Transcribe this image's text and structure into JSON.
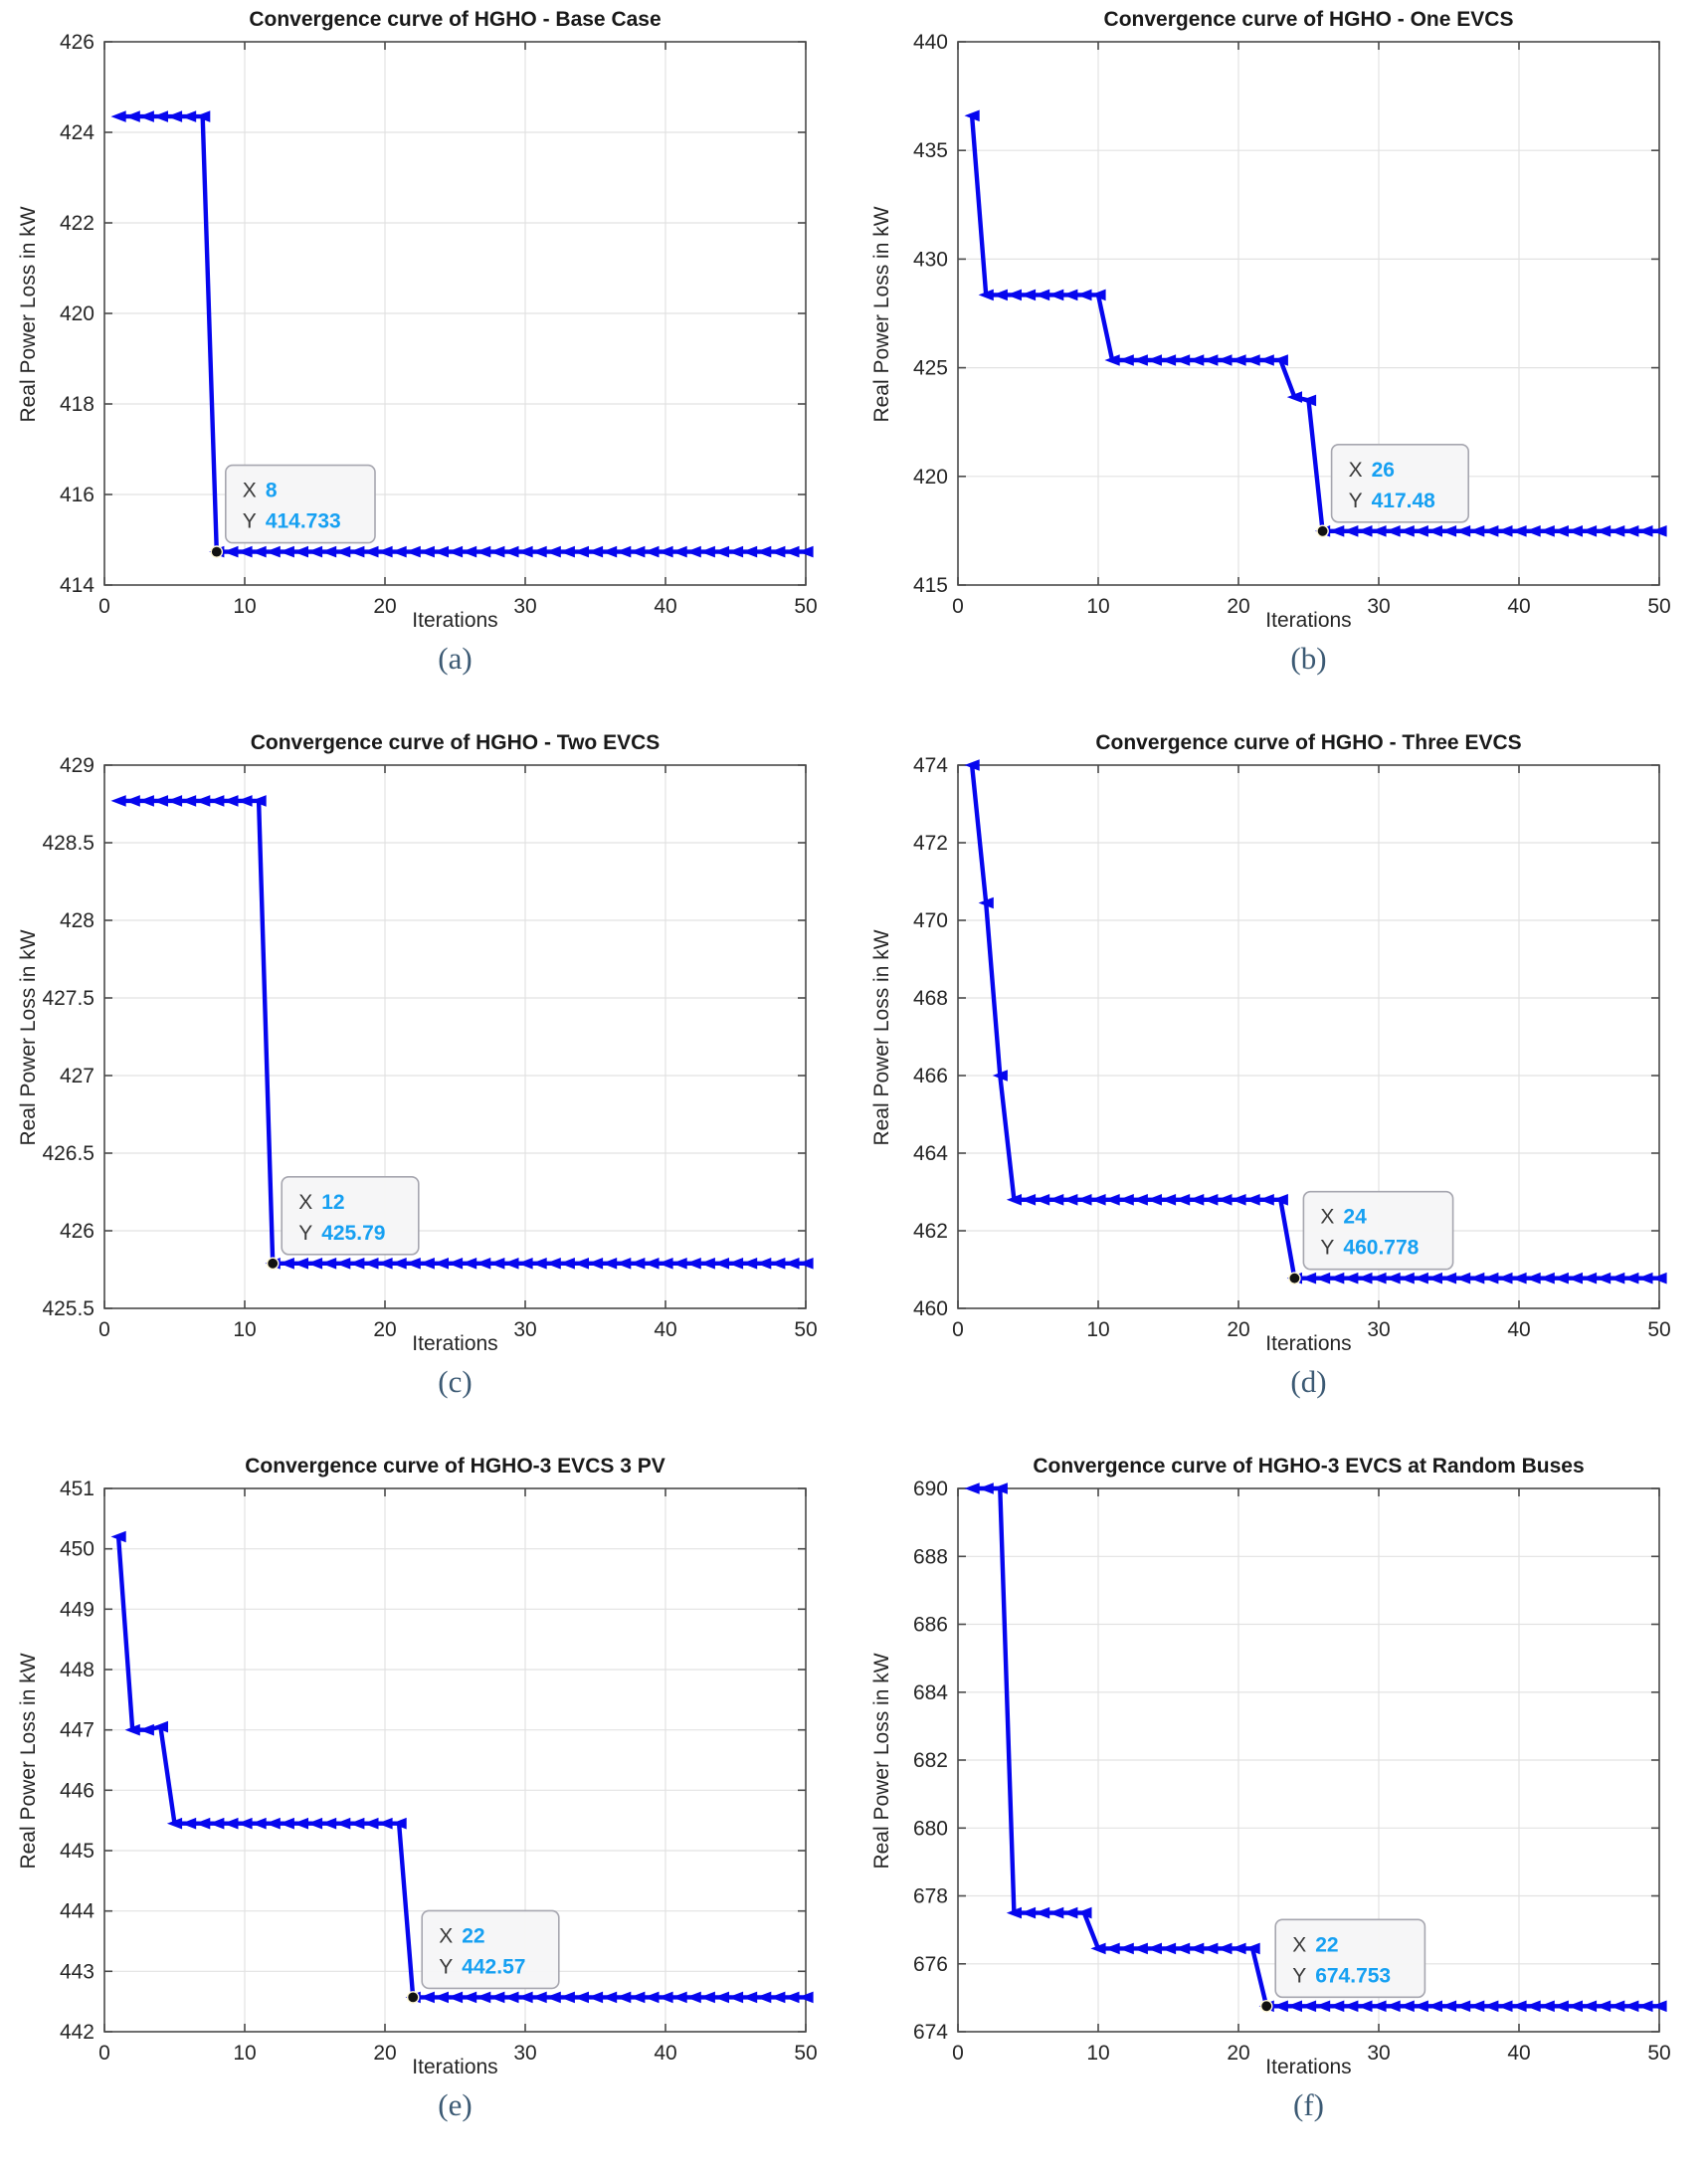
{
  "figure": {
    "background": "#ffffff",
    "styles": {
      "line_color": "#0606ee",
      "grid_color": "#e2e2e2",
      "axes_color": "#4a4a4a",
      "tick_label_color": "#262626",
      "title_color": "#191919",
      "caption_color": "#3c5a74",
      "datatip_bg": "#f5f5f7",
      "datatip_border": "#a6a6af",
      "datatip_label_color": "#3a3a3a",
      "datatip_value_color": "#16a0f2",
      "datatip_point_color": "#111111",
      "marker": "left-triangle"
    }
  },
  "chart_data": [
    {
      "type": "line",
      "title": "Convergence curve of HGHO - Base Case",
      "xlabel": "Iterations",
      "ylabel": "Real Power Loss in kW",
      "caption": "(a)",
      "xlim": [
        0,
        50
      ],
      "ylim": [
        414,
        426
      ],
      "xticks": [
        0,
        10,
        20,
        30,
        40,
        50
      ],
      "yticks": [
        414,
        416,
        418,
        420,
        422,
        424,
        426
      ],
      "grid": true,
      "legend": "none",
      "segments": [
        [
          1,
          7,
          424.35
        ],
        [
          8,
          50,
          414.733
        ]
      ],
      "datatip": {
        "x": 8,
        "y": 414.733,
        "x_label": "X",
        "y_label": "Y",
        "x_value": "8",
        "y_value": "414.733"
      }
    },
    {
      "type": "line",
      "title": "Convergence curve of HGHO - One EVCS",
      "xlabel": "Iterations",
      "ylabel": "Real Power Loss in kW",
      "caption": "(b)",
      "xlim": [
        0,
        50
      ],
      "ylim": [
        415,
        440
      ],
      "xticks": [
        0,
        10,
        20,
        30,
        40,
        50
      ],
      "yticks": [
        415,
        420,
        425,
        430,
        435,
        440
      ],
      "grid": true,
      "legend": "none",
      "segments": [
        [
          1,
          1,
          436.6
        ],
        [
          2,
          10,
          428.35
        ],
        [
          11,
          23,
          425.35
        ],
        [
          24,
          24,
          423.65
        ],
        [
          25,
          25,
          423.5
        ],
        [
          26,
          50,
          417.48
        ]
      ],
      "datatip": {
        "x": 26,
        "y": 417.48,
        "x_label": "X",
        "y_label": "Y",
        "x_value": "26",
        "y_value": "417.48"
      }
    },
    {
      "type": "line",
      "title": "Convergence curve of HGHO - Two EVCS",
      "xlabel": "Iterations",
      "ylabel": "Real Power Loss in kW",
      "caption": "(c)",
      "xlim": [
        0,
        50
      ],
      "ylim": [
        425.5,
        429
      ],
      "xticks": [
        0,
        10,
        20,
        30,
        40,
        50
      ],
      "yticks": [
        425.5,
        426,
        426.5,
        427,
        427.5,
        428,
        428.5,
        429
      ],
      "grid": true,
      "legend": "none",
      "segments": [
        [
          1,
          11,
          428.77
        ],
        [
          12,
          50,
          425.79
        ]
      ],
      "datatip": {
        "x": 12,
        "y": 425.79,
        "x_label": "X",
        "y_label": "Y",
        "x_value": "12",
        "y_value": "425.79"
      }
    },
    {
      "type": "line",
      "title": "Convergence curve of HGHO - Three EVCS",
      "xlabel": "Iterations",
      "ylabel": "Real Power Loss in kW",
      "caption": "(d)",
      "xlim": [
        0,
        50
      ],
      "ylim": [
        460,
        474
      ],
      "xticks": [
        0,
        10,
        20,
        30,
        40,
        50
      ],
      "yticks": [
        460,
        462,
        464,
        466,
        468,
        470,
        472,
        474
      ],
      "grid": true,
      "legend": "none",
      "segments": [
        [
          1,
          1,
          474.0
        ],
        [
          2,
          2,
          470.45
        ],
        [
          3,
          3,
          466.0
        ],
        [
          4,
          23,
          462.8
        ],
        [
          24,
          50,
          460.778
        ]
      ],
      "datatip": {
        "x": 24,
        "y": 460.778,
        "x_label": "X",
        "y_label": "Y",
        "x_value": "24",
        "y_value": "460.778"
      }
    },
    {
      "type": "line",
      "title": "Convergence curve of HGHO-3 EVCS 3 PV",
      "xlabel": "Iterations",
      "ylabel": "Real Power Loss in kW",
      "caption": "(e)",
      "xlim": [
        0,
        50
      ],
      "ylim": [
        442,
        451
      ],
      "xticks": [
        0,
        10,
        20,
        30,
        40,
        50
      ],
      "yticks": [
        442,
        443,
        444,
        445,
        446,
        447,
        448,
        449,
        450,
        451
      ],
      "grid": true,
      "legend": "none",
      "segments": [
        [
          1,
          1,
          450.2
        ],
        [
          2,
          3,
          447.0
        ],
        [
          4,
          4,
          447.05
        ],
        [
          5,
          21,
          445.45
        ],
        [
          22,
          50,
          442.57
        ]
      ],
      "datatip": {
        "x": 22,
        "y": 442.57,
        "x_label": "X",
        "y_label": "Y",
        "x_value": "22",
        "y_value": "442.57"
      }
    },
    {
      "type": "line",
      "title": "Convergence curve of HGHO-3 EVCS at Random Buses",
      "xlabel": "Iterations",
      "ylabel": "Real Power Loss in kW",
      "caption": "(f)",
      "xlim": [
        0,
        50
      ],
      "ylim": [
        674,
        690
      ],
      "xticks": [
        0,
        10,
        20,
        30,
        40,
        50
      ],
      "yticks": [
        674,
        676,
        678,
        680,
        682,
        684,
        686,
        688,
        690
      ],
      "grid": true,
      "legend": "none",
      "segments": [
        [
          1,
          3,
          690.0
        ],
        [
          4,
          9,
          677.5
        ],
        [
          10,
          21,
          676.45
        ],
        [
          22,
          50,
          674.753
        ]
      ],
      "datatip": {
        "x": 22,
        "y": 674.753,
        "x_label": "X",
        "y_label": "Y",
        "x_value": "22",
        "y_value": "674.753"
      }
    }
  ]
}
